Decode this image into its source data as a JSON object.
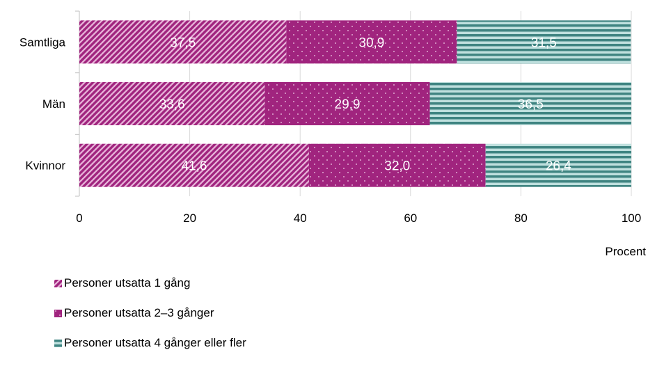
{
  "chart_data": {
    "type": "bar",
    "orientation": "horizontal",
    "stacked": true,
    "categories": [
      "Samtliga",
      "Män",
      "Kvinnor"
    ],
    "series": [
      {
        "name": "Personer utsatta 1 gång",
        "values": [
          37.5,
          33.6,
          41.6
        ],
        "labels": [
          "37,5",
          "33,6",
          "41,6"
        ],
        "color": "#A0247E",
        "pattern": "diagonal-stripes"
      },
      {
        "name": "Personer utsatta 2–3 gånger",
        "values": [
          30.9,
          29.9,
          32.0
        ],
        "labels": [
          "30,9",
          "29,9",
          "32,0"
        ],
        "color": "#A0247E",
        "pattern": "dots"
      },
      {
        "name": "Personer utsatta 4 gånger eller fler",
        "values": [
          31.5,
          36.5,
          26.4
        ],
        "labels": [
          "31,5",
          "36,5",
          "26,4"
        ],
        "color": "#3F8481",
        "pattern": "horizontal-stripes"
      }
    ],
    "xlabel": "Procent",
    "xlim": [
      0,
      100
    ],
    "xticks": [
      0,
      20,
      40,
      60,
      80,
      100
    ],
    "grid": "vertical",
    "legend_position": "bottom-left"
  }
}
